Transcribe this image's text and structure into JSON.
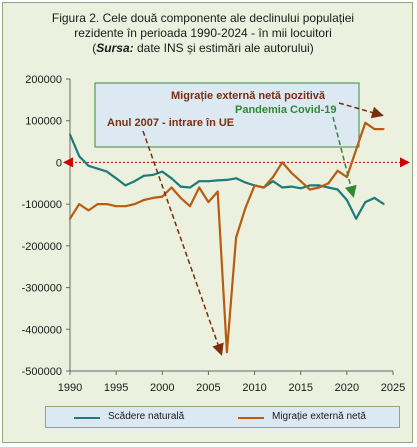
{
  "title": {
    "line1": "Figura 2. Cele două componente  ale declinului populației",
    "line2": "rezidente în perioada 1990-2024 - în mii locuitori",
    "line3_prefix": "(",
    "line3_source_label": "Sursa:",
    "line3_rest": " date INS și estimări ale autorului)"
  },
  "annotations": {
    "box_line1": "Migrație  externă netă pozitivă",
    "box_line2": "Pandemia Covid-19",
    "box_line3": "Anul 2007 - intrare în UE"
  },
  "colors": {
    "natural": "#1e7b7b",
    "migration": "#b85c14",
    "annotation_text": "#7a2e0e",
    "covid_text": "#2f8a2f",
    "zero_line": "#cc0000",
    "box_fill": "#dce9f3"
  },
  "chart_data": {
    "type": "line",
    "x": [
      1990,
      1991,
      1992,
      1993,
      1994,
      1995,
      1996,
      1997,
      1998,
      1999,
      2000,
      2001,
      2002,
      2003,
      2004,
      2005,
      2006,
      2007,
      2008,
      2009,
      2010,
      2011,
      2012,
      2013,
      2014,
      2015,
      2016,
      2017,
      2018,
      2019,
      2020,
      2021,
      2022,
      2023,
      2024
    ],
    "xlim": [
      1990,
      2025
    ],
    "xticks": [
      1990,
      1995,
      2000,
      2005,
      2010,
      2015,
      2020,
      2025
    ],
    "ylim": [
      -500000,
      200000
    ],
    "yticks": [
      -500000,
      -400000,
      -300000,
      -200000,
      -100000,
      0,
      100000,
      200000
    ],
    "ytick_labels": [
      "-500000",
      "-400000",
      "-300000",
      "-200000",
      "-100000",
      "0",
      "100000",
      "200000"
    ],
    "grid": false,
    "legend_position": "bottom",
    "series": [
      {
        "name": "Scădere naturală",
        "values": [
          67000,
          15000,
          -8000,
          -15000,
          -22000,
          -38000,
          -55000,
          -45000,
          -32000,
          -30000,
          -22000,
          -38000,
          -58000,
          -60000,
          -45000,
          -45000,
          -43000,
          -42000,
          -38000,
          -48000,
          -55000,
          -60000,
          -45000,
          -60000,
          -58000,
          -62000,
          -55000,
          -55000,
          -60000,
          -65000,
          -90000,
          -135000,
          -95000,
          -85000,
          -100000
        ]
      },
      {
        "name": "Migrație externă netă",
        "values": [
          -135000,
          -100000,
          -115000,
          -100000,
          -100000,
          -105000,
          -105000,
          -100000,
          -90000,
          -85000,
          -82000,
          -60000,
          -85000,
          -105000,
          -60000,
          -95000,
          -70000,
          -455000,
          -180000,
          -110000,
          -55000,
          -60000,
          -35000,
          0,
          -25000,
          -45000,
          -65000,
          -60000,
          -50000,
          -20000,
          -35000,
          30000,
          95000,
          80000,
          80000
        ]
      }
    ]
  }
}
